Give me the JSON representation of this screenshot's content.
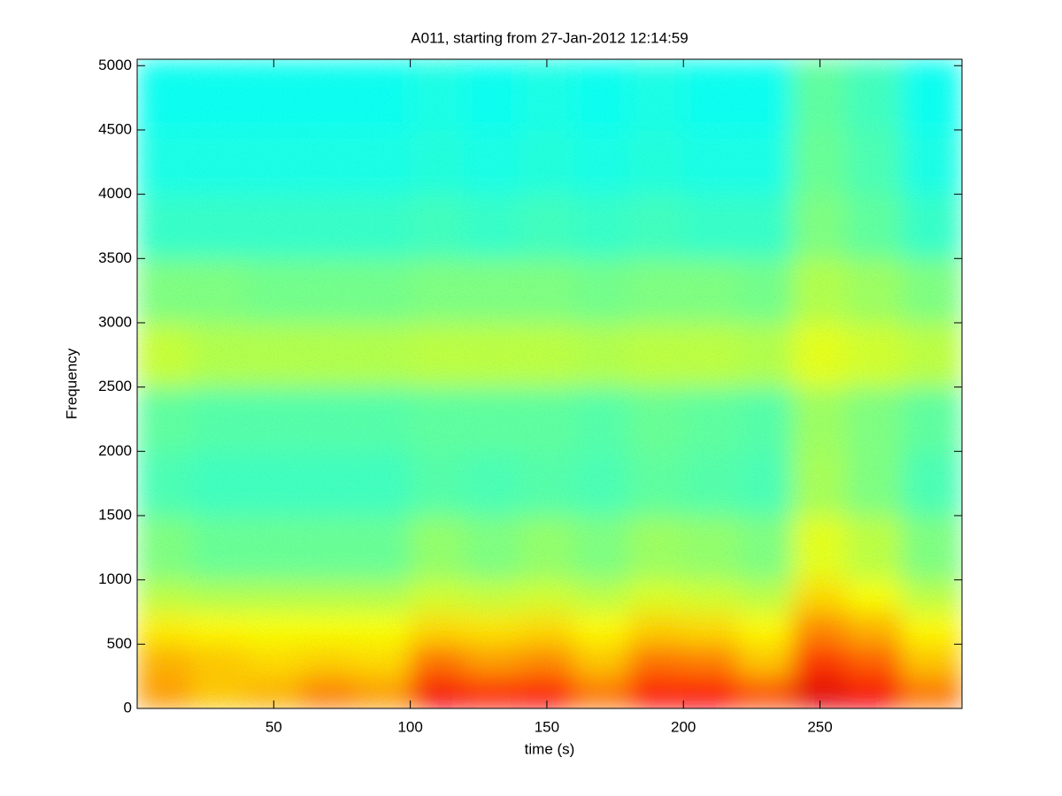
{
  "chart_data": {
    "type": "spectrogram",
    "title": "A011, starting from 27-Jan-2012 12:14:59",
    "x_label": "time (s)",
    "y_label": "Frequency",
    "xlim": [
      0,
      302
    ],
    "ylim": [
      0,
      5050
    ],
    "xticks": [
      50,
      100,
      150,
      200,
      250
    ],
    "yticks": [
      0,
      500,
      1000,
      1500,
      2000,
      2500,
      3000,
      3500,
      4000,
      4500,
      5000
    ],
    "colormap": "jet",
    "x_bins": [
      0,
      20,
      40,
      60,
      80,
      100,
      120,
      140,
      160,
      180,
      200,
      220,
      240,
      260,
      280,
      302
    ],
    "y_bins": [
      0,
      250,
      500,
      750,
      1000,
      1500,
      2000,
      2500,
      3000,
      3500,
      4000,
      4500,
      5050
    ],
    "values": [
      [
        0.72,
        0.68,
        0.7,
        0.75,
        0.72,
        0.88,
        0.85,
        0.86,
        0.76,
        0.86,
        0.87,
        0.8,
        0.9,
        0.88,
        0.76
      ],
      [
        0.7,
        0.68,
        0.66,
        0.67,
        0.66,
        0.76,
        0.72,
        0.74,
        0.68,
        0.76,
        0.75,
        0.68,
        0.82,
        0.78,
        0.68
      ],
      [
        0.64,
        0.63,
        0.62,
        0.62,
        0.62,
        0.66,
        0.65,
        0.66,
        0.63,
        0.67,
        0.66,
        0.63,
        0.74,
        0.7,
        0.63
      ],
      [
        0.56,
        0.55,
        0.55,
        0.55,
        0.55,
        0.58,
        0.57,
        0.58,
        0.56,
        0.59,
        0.58,
        0.56,
        0.66,
        0.62,
        0.56
      ],
      [
        0.5,
        0.48,
        0.48,
        0.48,
        0.48,
        0.52,
        0.5,
        0.52,
        0.5,
        0.53,
        0.52,
        0.5,
        0.6,
        0.56,
        0.5
      ],
      [
        0.45,
        0.44,
        0.44,
        0.44,
        0.44,
        0.46,
        0.45,
        0.46,
        0.45,
        0.47,
        0.46,
        0.45,
        0.54,
        0.5,
        0.45
      ],
      [
        0.47,
        0.46,
        0.46,
        0.46,
        0.46,
        0.47,
        0.47,
        0.47,
        0.46,
        0.48,
        0.47,
        0.46,
        0.53,
        0.5,
        0.47
      ],
      [
        0.57,
        0.55,
        0.55,
        0.55,
        0.55,
        0.56,
        0.56,
        0.56,
        0.55,
        0.56,
        0.56,
        0.55,
        0.6,
        0.58,
        0.56
      ],
      [
        0.5,
        0.5,
        0.49,
        0.49,
        0.49,
        0.5,
        0.5,
        0.5,
        0.49,
        0.5,
        0.5,
        0.49,
        0.55,
        0.53,
        0.5
      ],
      [
        0.43,
        0.43,
        0.43,
        0.43,
        0.43,
        0.44,
        0.43,
        0.44,
        0.43,
        0.44,
        0.43,
        0.43,
        0.5,
        0.47,
        0.43
      ],
      [
        0.4,
        0.4,
        0.4,
        0.4,
        0.4,
        0.41,
        0.4,
        0.41,
        0.4,
        0.41,
        0.4,
        0.4,
        0.48,
        0.45,
        0.4
      ],
      [
        0.39,
        0.39,
        0.39,
        0.39,
        0.39,
        0.4,
        0.39,
        0.4,
        0.39,
        0.4,
        0.39,
        0.39,
        0.47,
        0.44,
        0.39
      ]
    ]
  }
}
